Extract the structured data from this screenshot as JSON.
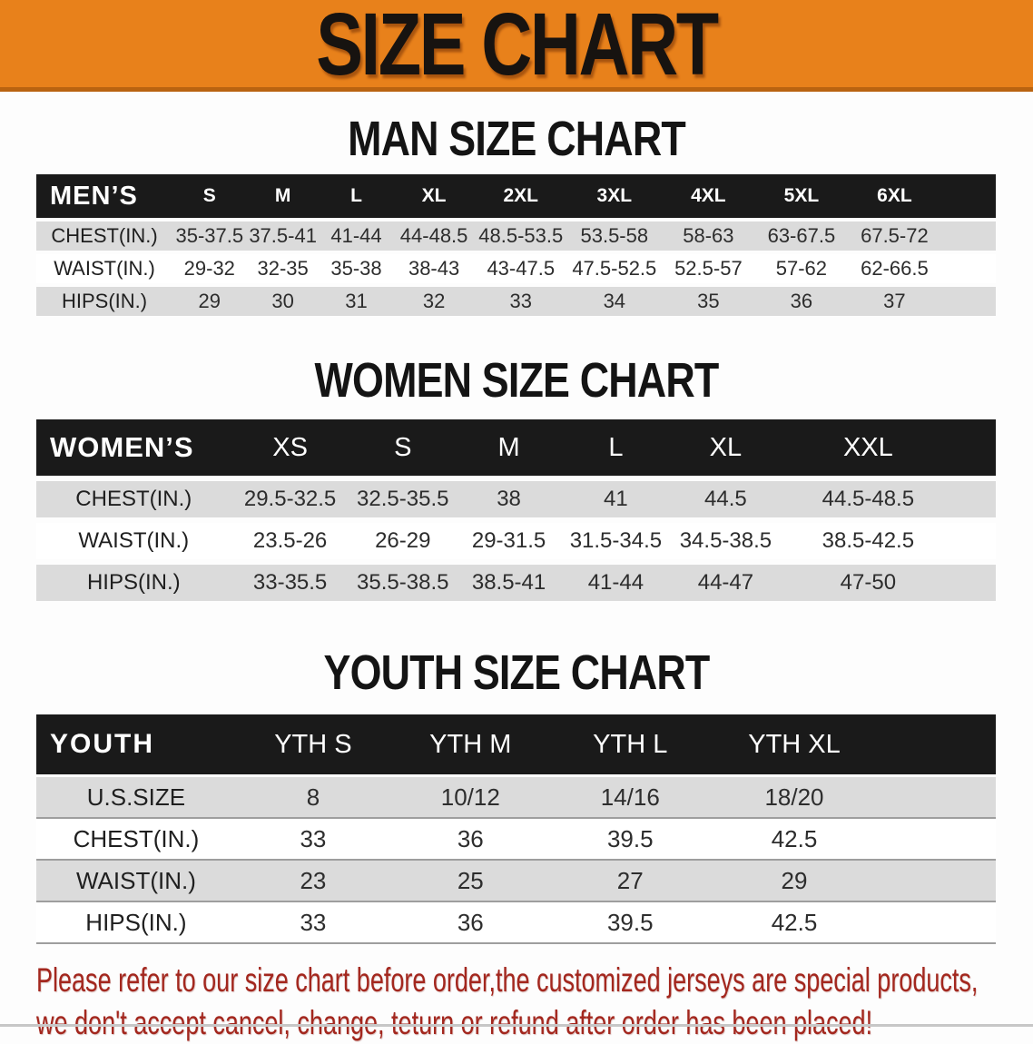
{
  "banner": {
    "title": "SIZE CHART",
    "bg_color": "#E8811B",
    "edge_color": "#B96310",
    "text_color": "#171310"
  },
  "colors": {
    "table_header_bg": "#1A1A1A",
    "table_header_text": "#FFFFFF",
    "row_gray": "#DBDBDB",
    "row_white": "#FFFFFF",
    "footer_red": "#A3271E"
  },
  "men": {
    "heading": "MAN SIZE CHART",
    "group_label": "MEN’S",
    "columns": [
      "S",
      "M",
      "L",
      "XL",
      "2XL",
      "3XL",
      "4XL",
      "5XL",
      "6XL"
    ],
    "rows": [
      {
        "label": "CHEST(IN.)",
        "values": [
          "35-37.5",
          "37.5-41",
          "41-44",
          "44-48.5",
          "48.5-53.5",
          "53.5-58",
          "58-63",
          "63-67.5",
          "67.5-72"
        ]
      },
      {
        "label": "WAIST(IN.)",
        "values": [
          "29-32",
          "32-35",
          "35-38",
          "38-43",
          "43-47.5",
          "47.5-52.5",
          "52.5-57",
          "57-62",
          "62-66.5"
        ]
      },
      {
        "label": "HIPS(IN.)",
        "values": [
          "29",
          "30",
          "31",
          "32",
          "33",
          "34",
          "35",
          "36",
          "37"
        ]
      }
    ]
  },
  "women": {
    "heading": "WOMEN SIZE CHART",
    "group_label": "WOMEN’S",
    "columns": [
      "XS",
      "S",
      "M",
      "L",
      "XL",
      "XXL"
    ],
    "rows": [
      {
        "label": "CHEST(IN.)",
        "values": [
          "29.5-32.5",
          "32.5-35.5",
          "38",
          "41",
          "44.5",
          "44.5-48.5"
        ]
      },
      {
        "label": "WAIST(IN.)",
        "values": [
          "23.5-26",
          "26-29",
          "29-31.5",
          "31.5-34.5",
          "34.5-38.5",
          "38.5-42.5"
        ]
      },
      {
        "label": "HIPS(IN.)",
        "values": [
          "33-35.5",
          "35.5-38.5",
          "38.5-41",
          "41-44",
          "44-47",
          "47-50"
        ]
      }
    ]
  },
  "youth": {
    "heading": "YOUTH SIZE CHART",
    "group_label": "YOUTH",
    "columns": [
      "YTH S",
      "YTH M",
      "YTH L",
      "YTH XL"
    ],
    "rows": [
      {
        "label": "U.S.SIZE",
        "values": [
          "8",
          "10/12",
          "14/16",
          "18/20"
        ]
      },
      {
        "label": "CHEST(IN.)",
        "values": [
          "33",
          "36",
          "39.5",
          "42.5"
        ]
      },
      {
        "label": "WAIST(IN.)",
        "values": [
          "23",
          "25",
          "27",
          "29"
        ]
      },
      {
        "label": "HIPS(IN.)",
        "values": [
          "33",
          "36",
          "39.5",
          "42.5"
        ]
      }
    ]
  },
  "footer": {
    "line1": "Please refer to our size chart before order,the customized jerseys are special products,",
    "line2": "we don't accept cancel, change, teturn or refund after order has been placed!"
  }
}
